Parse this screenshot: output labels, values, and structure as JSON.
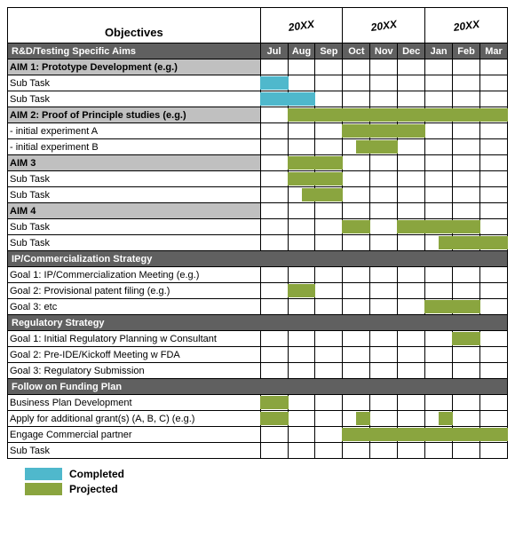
{
  "colors": {
    "completed": "#4fb8cc",
    "projected": "#8aa53f",
    "section_bg": "#606060",
    "aim_bg": "#c0c0c0",
    "border": "#000000",
    "text_light": "#ffffff"
  },
  "header": {
    "objectives_label": "Objectives",
    "years": [
      "20XX",
      "20XX",
      "20XX"
    ],
    "section_title": "R&D/Testing Specific Aims",
    "months": [
      "Jul",
      "Aug",
      "Sep",
      "Oct",
      "Nov",
      "Dec",
      "Jan",
      "Feb",
      "Mar"
    ]
  },
  "rows": [
    {
      "type": "aim",
      "label": "AIM 1: Prototype Development (e.g.)"
    },
    {
      "type": "task",
      "label": "Sub Task",
      "bars": [
        {
          "from": 0,
          "to": 0,
          "status": "completed"
        }
      ]
    },
    {
      "type": "task",
      "label": "Sub Task",
      "bars": [
        {
          "from": 0,
          "to": 1.5,
          "status": "completed"
        }
      ]
    },
    {
      "type": "aim",
      "label": "AIM 2: Proof of Principle studies (e.g.)",
      "bars": [
        {
          "from": 1,
          "to": 8,
          "status": "projected"
        }
      ]
    },
    {
      "type": "task",
      "label": " - initial experiment A",
      "bars": [
        {
          "from": 3,
          "to": 5,
          "status": "projected"
        }
      ]
    },
    {
      "type": "task",
      "label": " - initial experiment B",
      "bars": [
        {
          "from": 3.5,
          "to": 4.5,
          "status": "projected"
        }
      ]
    },
    {
      "type": "aim",
      "label": "AIM 3",
      "bars": [
        {
          "from": 1,
          "to": 2,
          "status": "projected"
        }
      ]
    },
    {
      "type": "task",
      "label": "Sub Task",
      "bars": [
        {
          "from": 1,
          "to": 2.5,
          "status": "projected"
        }
      ]
    },
    {
      "type": "task",
      "label": "Sub Task",
      "bars": [
        {
          "from": 1.5,
          "to": 2,
          "status": "projected"
        }
      ]
    },
    {
      "type": "aim",
      "label": "AIM 4"
    },
    {
      "type": "task",
      "label": "Sub Task",
      "bars": [
        {
          "from": 3,
          "to": 3,
          "status": "projected"
        },
        {
          "from": 5,
          "to": 7,
          "status": "projected"
        }
      ]
    },
    {
      "type": "task",
      "label": "Sub Task",
      "bars": [
        {
          "from": 6.5,
          "to": 8,
          "status": "projected"
        }
      ]
    },
    {
      "type": "section",
      "label": "IP/Commercialization Strategy"
    },
    {
      "type": "task",
      "label": "Goal 1: IP/Commercialization Meeting (e.g.)"
    },
    {
      "type": "task",
      "label": "Goal 2: Provisional patent filing (e.g.)",
      "bars": [
        {
          "from": 1,
          "to": 1,
          "status": "projected"
        }
      ]
    },
    {
      "type": "task",
      "label": "Goal 3: etc",
      "bars": [
        {
          "from": 6,
          "to": 7,
          "status": "projected"
        }
      ]
    },
    {
      "type": "section",
      "label": "Regulatory Strategy"
    },
    {
      "type": "task",
      "label": "Goal 1: Initial Regulatory Planning w Consultant",
      "bars": [
        {
          "from": 7,
          "to": 7,
          "status": "projected"
        }
      ]
    },
    {
      "type": "task",
      "label": "Goal 2: Pre-IDE/Kickoff Meeting w FDA"
    },
    {
      "type": "task",
      "label": "Goal 3: Regulatory Submission"
    },
    {
      "type": "section",
      "label": "Follow on Funding Plan"
    },
    {
      "type": "task",
      "label": "Business Plan Development",
      "bars": [
        {
          "from": 0,
          "to": 0.5,
          "status": "projected"
        }
      ]
    },
    {
      "type": "task",
      "label": "Apply for additional grant(s) (A, B, C) (e.g.)",
      "bars": [
        {
          "from": 0,
          "to": 0,
          "status": "projected"
        },
        {
          "from": 3.5,
          "to": 3.5,
          "status": "projected"
        },
        {
          "from": 6.5,
          "to": 6.5,
          "status": "projected"
        }
      ]
    },
    {
      "type": "task",
      "label": "Engage Commercial partner",
      "bars": [
        {
          "from": 3,
          "to": 5,
          "status": "projected"
        },
        {
          "from": 6,
          "to": 8,
          "status": "projected"
        }
      ]
    },
    {
      "type": "task",
      "label": "Sub Task"
    }
  ],
  "legend": {
    "completed": "Completed",
    "projected": "Projected"
  }
}
